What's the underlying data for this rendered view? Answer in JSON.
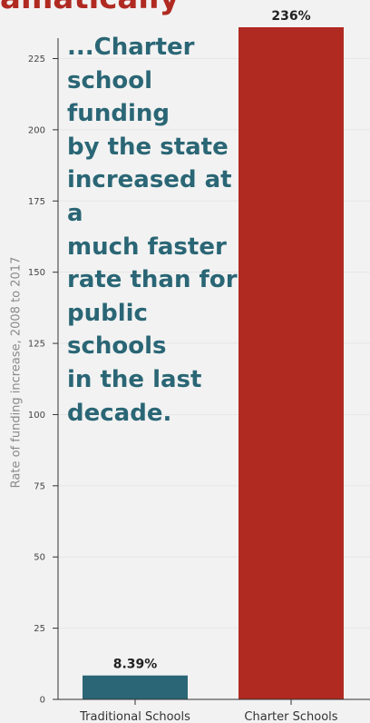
{
  "chart_data": {
    "type": "bar",
    "title_fragment": "amatically",
    "annotation": "...Charter\nschool funding\nby the state\nincreased at a\nmuch faster\nrate than for\npublic schools\nin the last\ndecade.",
    "categories": [
      "Traditional Schools",
      "Charter Schools"
    ],
    "values": [
      8.39,
      236
    ],
    "value_labels": [
      "8.39%",
      "236%"
    ],
    "ylabel": "Rate of funding increase, 2008 to 2017",
    "xlabel": "",
    "ylim": [
      0,
      236
    ],
    "yticks": [
      0,
      25,
      50,
      75,
      100,
      125,
      150,
      175,
      200,
      225
    ],
    "grid": true,
    "colors": [
      "#2a6675",
      "#b02a22"
    ]
  }
}
